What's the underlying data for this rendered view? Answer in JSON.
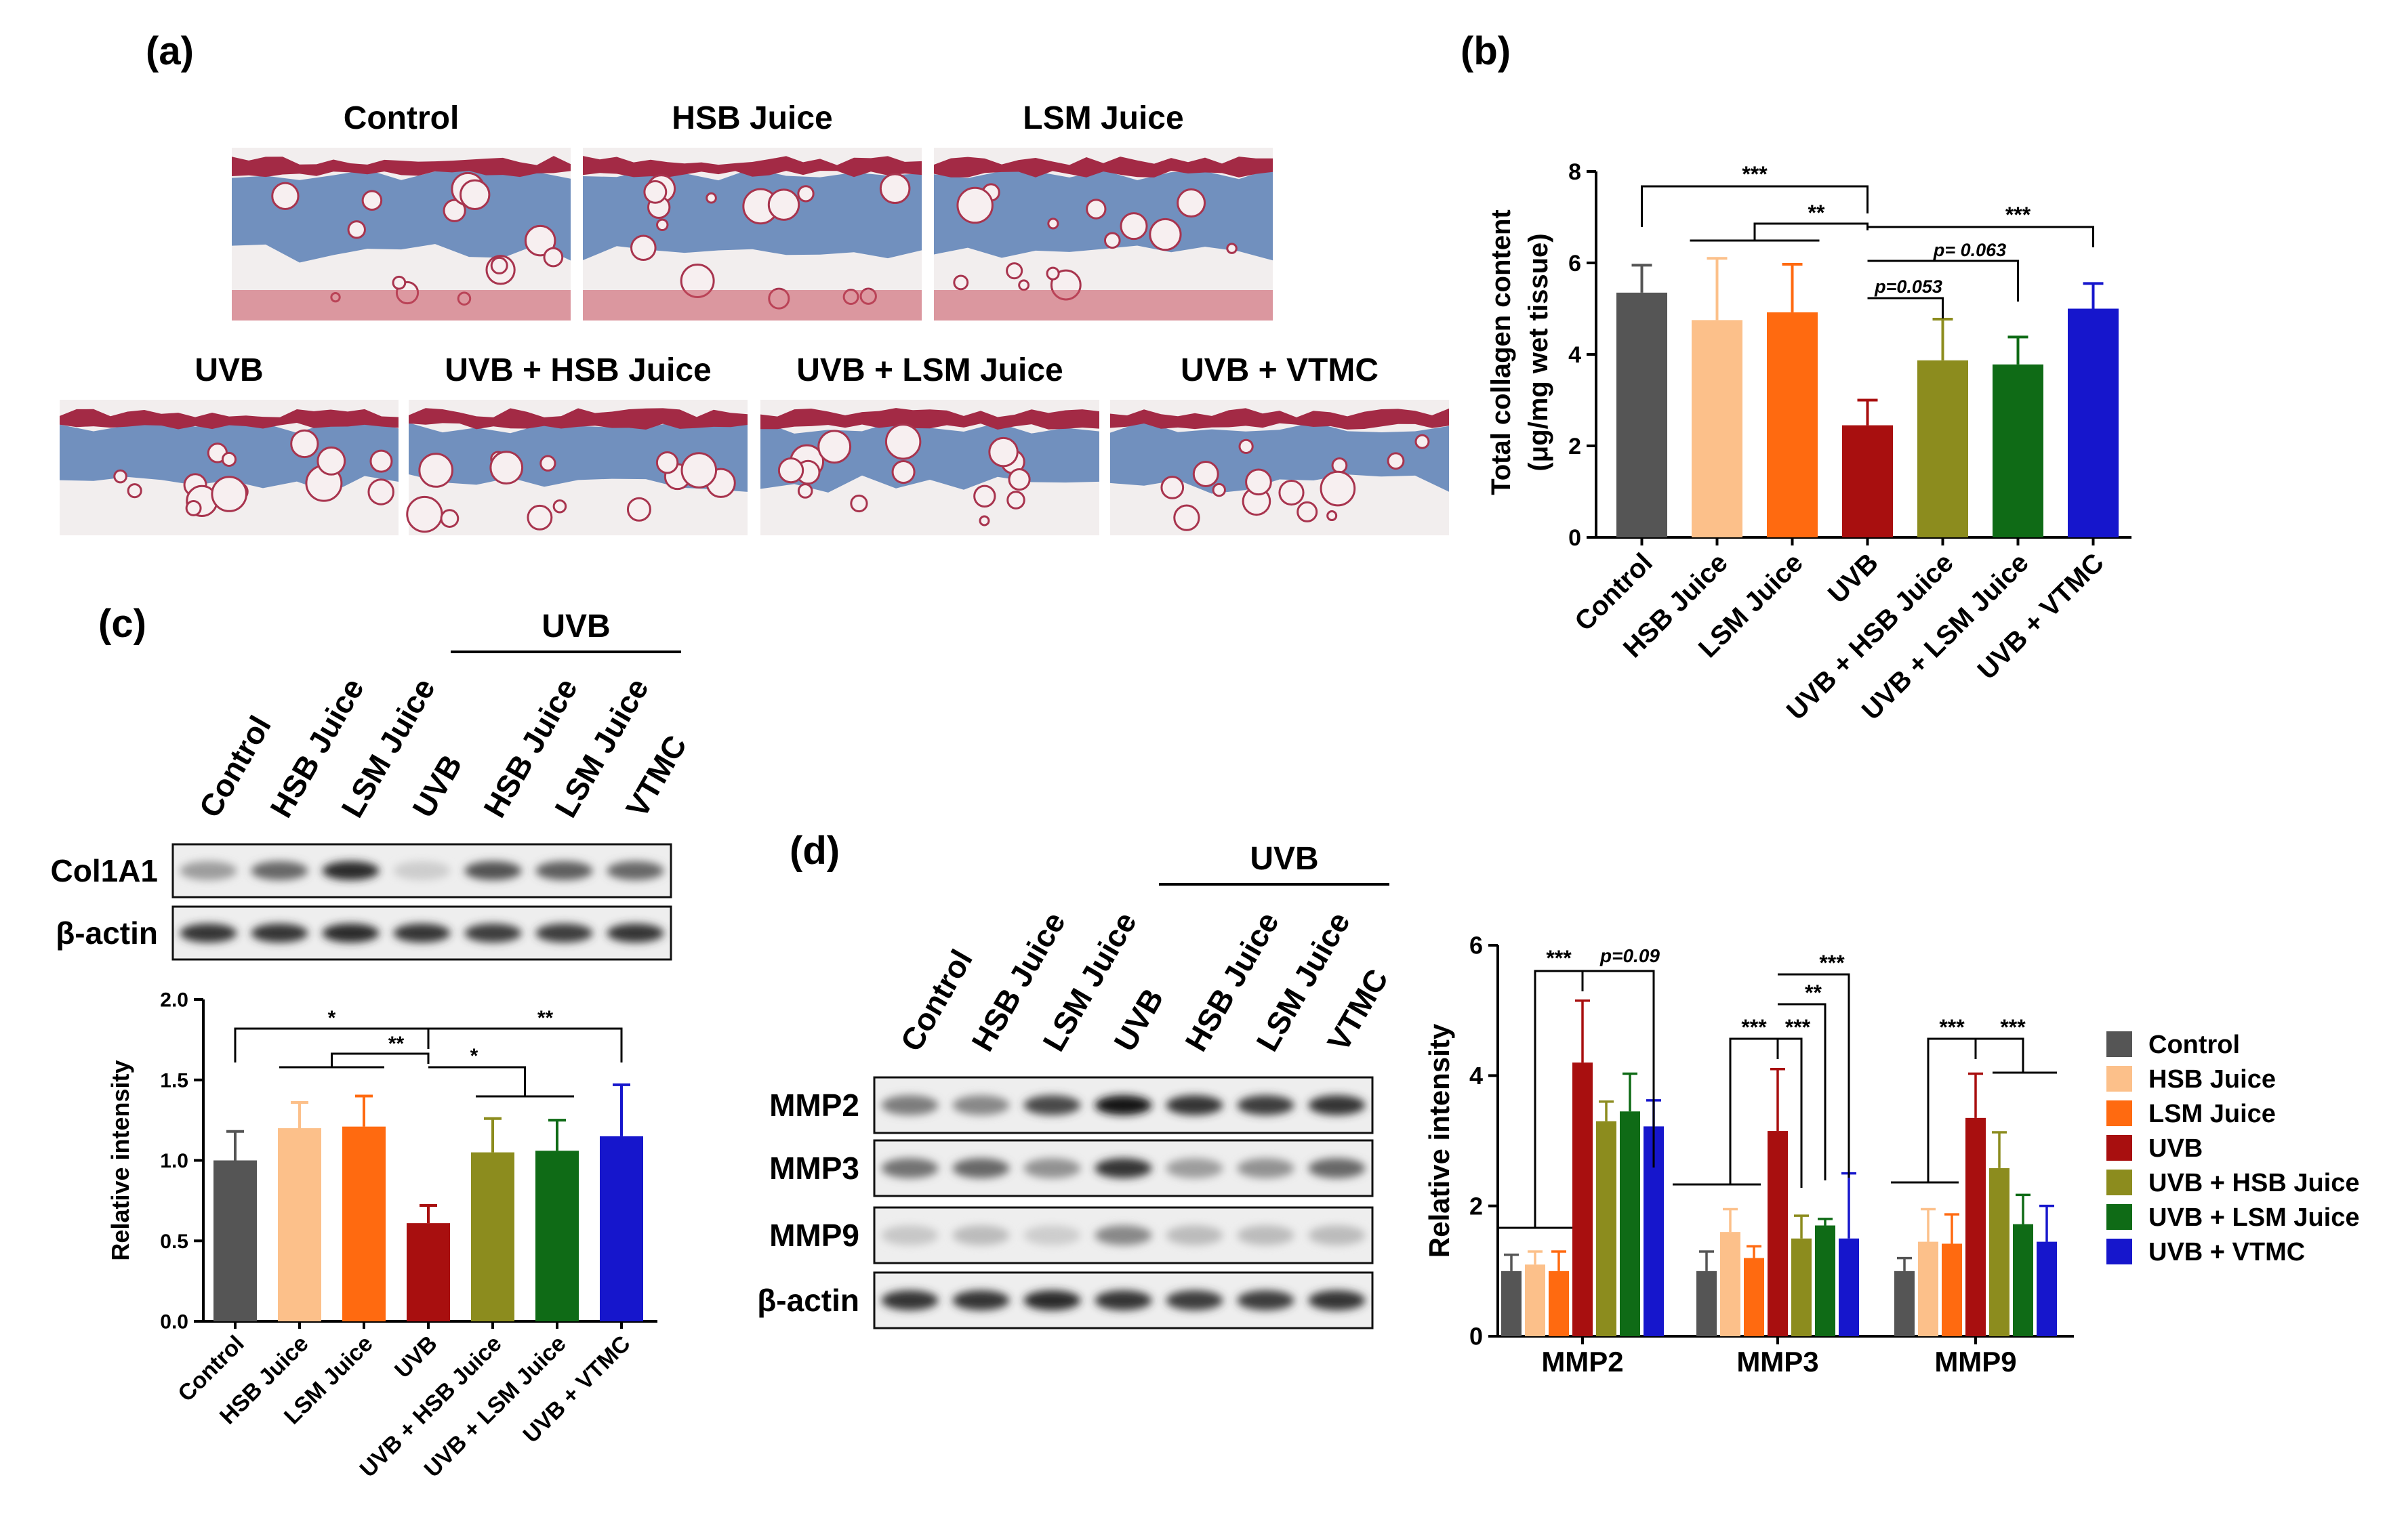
{
  "panel_labels": {
    "a": "(a)",
    "b": "(b)",
    "c": "(c)",
    "d": "(d)"
  },
  "colors": {
    "Control": "#555555",
    "HSB Juice": "#fcc08a",
    "LSM Juice": "#ff6a10",
    "UVB": "#a80f0f",
    "UVB + HSB Juice": "#8c8c1e",
    "UVB + LSM Juice": "#0f6b16",
    "UVB + VTMC": "#1616cc"
  },
  "histology": {
    "labels": [
      "Control",
      "HSB Juice",
      "LSM Juice",
      "UVB",
      "UVB + HSB Juice",
      "UVB + LSM Juice",
      "UVB + VTMC"
    ]
  },
  "blot_c": {
    "group_label": "UVB",
    "lane_labels": [
      "Control",
      "HSB Juice",
      "LSM Juice",
      "UVB",
      "HSB Juice",
      "LSM Juice",
      "VTMC"
    ],
    "row_labels": [
      "Col1A1",
      "β-actin"
    ],
    "band_intensity": [
      [
        0.35,
        0.6,
        0.9,
        0.12,
        0.7,
        0.65,
        0.6
      ],
      [
        0.85,
        0.85,
        0.9,
        0.85,
        0.8,
        0.8,
        0.85
      ]
    ]
  },
  "blot_d": {
    "group_label": "UVB",
    "lane_labels": [
      "Control",
      "HSB Juice",
      "LSM Juice",
      "UVB",
      "HSB Juice",
      "LSM Juice",
      "VTMC"
    ],
    "row_labels": [
      "MMP2",
      "MMP3",
      "MMP9",
      "β-actin"
    ],
    "band_intensity": [
      [
        0.5,
        0.45,
        0.75,
        1.0,
        0.85,
        0.8,
        0.85
      ],
      [
        0.55,
        0.6,
        0.4,
        0.85,
        0.35,
        0.4,
        0.6
      ],
      [
        0.15,
        0.2,
        0.12,
        0.45,
        0.2,
        0.2,
        0.2
      ],
      [
        0.85,
        0.85,
        0.9,
        0.85,
        0.8,
        0.8,
        0.85
      ]
    ]
  },
  "chart_data": [
    {
      "id": "b",
      "type": "bar",
      "categories": [
        "Control",
        "HSB Juice",
        "LSM Juice",
        "UVB",
        "UVB + HSB Juice",
        "UVB + LSM Juice",
        "UVB + VTMC"
      ],
      "values": [
        5.35,
        4.75,
        4.92,
        2.45,
        3.87,
        3.78,
        5.0
      ],
      "errors": [
        0.6,
        1.35,
        1.05,
        0.55,
        0.9,
        0.6,
        0.55
      ],
      "ylabel": "Total collagen content\n(μg/mg wet tissue)",
      "ylim": [
        0,
        8
      ],
      "yticks": [
        "0",
        "2",
        "4",
        "6",
        "8"
      ],
      "annotations": [
        "***",
        "**",
        "***",
        "p= 0.063",
        "p=0.053"
      ]
    },
    {
      "id": "c",
      "type": "bar",
      "categories": [
        "Control",
        "HSB Juice",
        "LSM Juice",
        "UVB",
        "UVB + HSB Juice",
        "UVB + LSM Juice",
        "UVB + VTMC"
      ],
      "values": [
        1.0,
        1.2,
        1.21,
        0.61,
        1.05,
        1.06,
        1.15
      ],
      "errors": [
        0.18,
        0.16,
        0.19,
        0.11,
        0.21,
        0.19,
        0.32
      ],
      "ylabel": "Relative intensity",
      "ylim": [
        0,
        2.0
      ],
      "yticks": [
        "0.0",
        "0.5",
        "1.0",
        "1.5",
        "2.0"
      ],
      "annotations": [
        "*",
        "**",
        "*",
        "**"
      ]
    },
    {
      "id": "d",
      "type": "bar",
      "categories": [
        "MMP2",
        "MMP3",
        "MMP9"
      ],
      "series": [
        {
          "name": "Control",
          "values": [
            1.0,
            1.0,
            1.0
          ],
          "errors": [
            0.25,
            0.3,
            0.2
          ]
        },
        {
          "name": "HSB Juice",
          "values": [
            1.1,
            1.6,
            1.45
          ],
          "errors": [
            0.2,
            0.35,
            0.5
          ]
        },
        {
          "name": "LSM Juice",
          "values": [
            1.0,
            1.2,
            1.42
          ],
          "errors": [
            0.3,
            0.18,
            0.45
          ]
        },
        {
          "name": "UVB",
          "values": [
            4.2,
            3.15,
            3.35
          ],
          "errors": [
            0.95,
            0.95,
            0.68
          ]
        },
        {
          "name": "UVB + HSB Juice",
          "values": [
            3.3,
            1.5,
            2.58
          ],
          "errors": [
            0.3,
            0.35,
            0.55
          ]
        },
        {
          "name": "UVB + LSM Juice",
          "values": [
            3.45,
            1.7,
            1.72
          ],
          "errors": [
            0.58,
            0.1,
            0.45
          ]
        },
        {
          "name": "UVB + VTMC",
          "values": [
            3.22,
            1.5,
            1.45
          ],
          "errors": [
            0.4,
            1.0,
            0.55
          ]
        }
      ],
      "ylabel": "Relative intensity",
      "ylim": [
        0,
        6
      ],
      "yticks": [
        "0",
        "2",
        "4",
        "6"
      ],
      "annotations": [
        "***",
        "p=0.09",
        "***",
        "***",
        "**",
        "***",
        "***",
        "***"
      ],
      "legend": "right"
    }
  ]
}
